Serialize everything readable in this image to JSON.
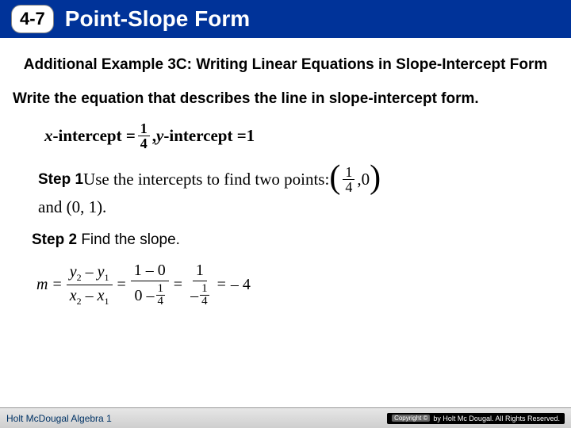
{
  "colors": {
    "header_bg": "#003399",
    "header_text": "#ffffff",
    "footer_text": "#003366"
  },
  "header": {
    "lesson_number": "4-7",
    "title": "Point-Slope Form"
  },
  "example": {
    "heading": "Additional Example 3C: Writing Linear Equations in Slope-Intercept Form",
    "prompt": "Write the equation that describes the line in slope-intercept form.",
    "x_intercept_label": "x",
    "intercept_word": "-intercept = ",
    "x_frac_num": "1",
    "x_frac_den": "4",
    "comma_sep": " , ",
    "y_intercept_label": "y",
    "y_value": "1"
  },
  "step1": {
    "label": "Step 1",
    "text_a": " Use the intercepts to find two points: ",
    "pt1_x_num": "1",
    "pt1_x_den": "4",
    "pt1_y": "0",
    "text_b": "and (0, 1)."
  },
  "step2": {
    "label": "Step 2",
    "text": " Find the slope."
  },
  "slope": {
    "m": "m",
    "eq": "=",
    "f1_top_a": "y",
    "f1_top_s2": "2",
    "f1_top_minus": " – ",
    "f1_top_b": "y",
    "f1_top_s1": "1",
    "f1_bot_a": "x",
    "f1_bot_s2": "2",
    "f1_bot_minus": " – ",
    "f1_bot_b": "x",
    "f1_bot_s1": "1",
    "f2_top": "1 – 0",
    "f2_bot_a": "0 – ",
    "f2_bot_num": "1",
    "f2_bot_den": "4",
    "f3_top": "1",
    "f3_bot_neg": "– ",
    "f3_bot_num": "1",
    "f3_bot_den": "4",
    "result": "– 4"
  },
  "footer": {
    "left": "Holt McDougal Algebra 1",
    "copyright_badge": "Copyright ©",
    "copyright_text": "by Holt Mc Dougal. All Rights Reserved."
  }
}
